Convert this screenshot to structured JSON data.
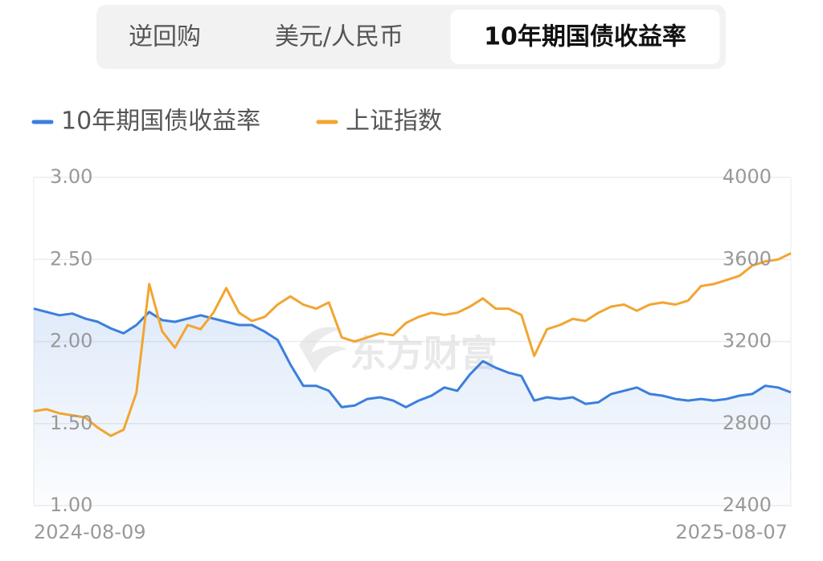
{
  "tabs": {
    "items": [
      "逆回购",
      "美元/人民币",
      "10年期国债收益率"
    ],
    "selected": 2
  },
  "chart_data": {
    "type": "line",
    "watermark": "东方财富",
    "categories": [
      "2024-08-09",
      null,
      null,
      null,
      null,
      null,
      null,
      null,
      null,
      null,
      null,
      null,
      null,
      null,
      null,
      null,
      null,
      null,
      null,
      null,
      null,
      null,
      null,
      null,
      null,
      null,
      null,
      null,
      null,
      null,
      null,
      null,
      null,
      null,
      null,
      null,
      null,
      null,
      null,
      null,
      null,
      null,
      null,
      null,
      null,
      null,
      null,
      null,
      null,
      null,
      null,
      null,
      null,
      null,
      null,
      null,
      null,
      null,
      null,
      "2025-08-07"
    ],
    "series": [
      {
        "name": "10年期国债收益率",
        "color": "#3b7fdc",
        "axis": "y",
        "area": true,
        "values": [
          2.2,
          2.18,
          2.16,
          2.17,
          2.14,
          2.12,
          2.08,
          2.05,
          2.1,
          2.18,
          2.13,
          2.12,
          2.14,
          2.16,
          2.14,
          2.12,
          2.1,
          2.1,
          2.06,
          2.01,
          1.86,
          1.73,
          1.73,
          1.7,
          1.6,
          1.61,
          1.65,
          1.66,
          1.64,
          1.6,
          1.64,
          1.67,
          1.72,
          1.7,
          1.8,
          1.88,
          1.84,
          1.81,
          1.79,
          1.64,
          1.66,
          1.65,
          1.66,
          1.62,
          1.63,
          1.68,
          1.7,
          1.72,
          1.68,
          1.67,
          1.65,
          1.64,
          1.65,
          1.64,
          1.65,
          1.67,
          1.68,
          1.73,
          1.72,
          1.69
        ]
      },
      {
        "name": "上证指数",
        "color": "#f2a531",
        "axis": "y2",
        "values": [
          2860,
          2870,
          2850,
          2840,
          2830,
          2780,
          2740,
          2770,
          2950,
          3480,
          3250,
          3170,
          3280,
          3260,
          3340,
          3460,
          3340,
          3300,
          3320,
          3380,
          3420,
          3380,
          3360,
          3390,
          3220,
          3200,
          3220,
          3240,
          3230,
          3290,
          3320,
          3340,
          3330,
          3340,
          3370,
          3410,
          3360,
          3360,
          3330,
          3130,
          3260,
          3280,
          3310,
          3300,
          3340,
          3370,
          3380,
          3350,
          3380,
          3390,
          3380,
          3400,
          3470,
          3480,
          3500,
          3520,
          3570,
          3590,
          3600,
          3630
        ]
      }
    ],
    "ylim": [
      1,
      3
    ],
    "yticks": [
      {
        "value": 1,
        "label": "1.00"
      },
      {
        "value": 1.5,
        "label": "1.50"
      },
      {
        "value": 2,
        "label": "2.00"
      },
      {
        "value": 2.5,
        "label": "2.50"
      },
      {
        "value": 3,
        "label": "3.00"
      }
    ],
    "y2lim": [
      2400,
      4000
    ],
    "y2ticks": [
      2400,
      2800,
      3200,
      3600,
      4000
    ],
    "grid": true
  }
}
